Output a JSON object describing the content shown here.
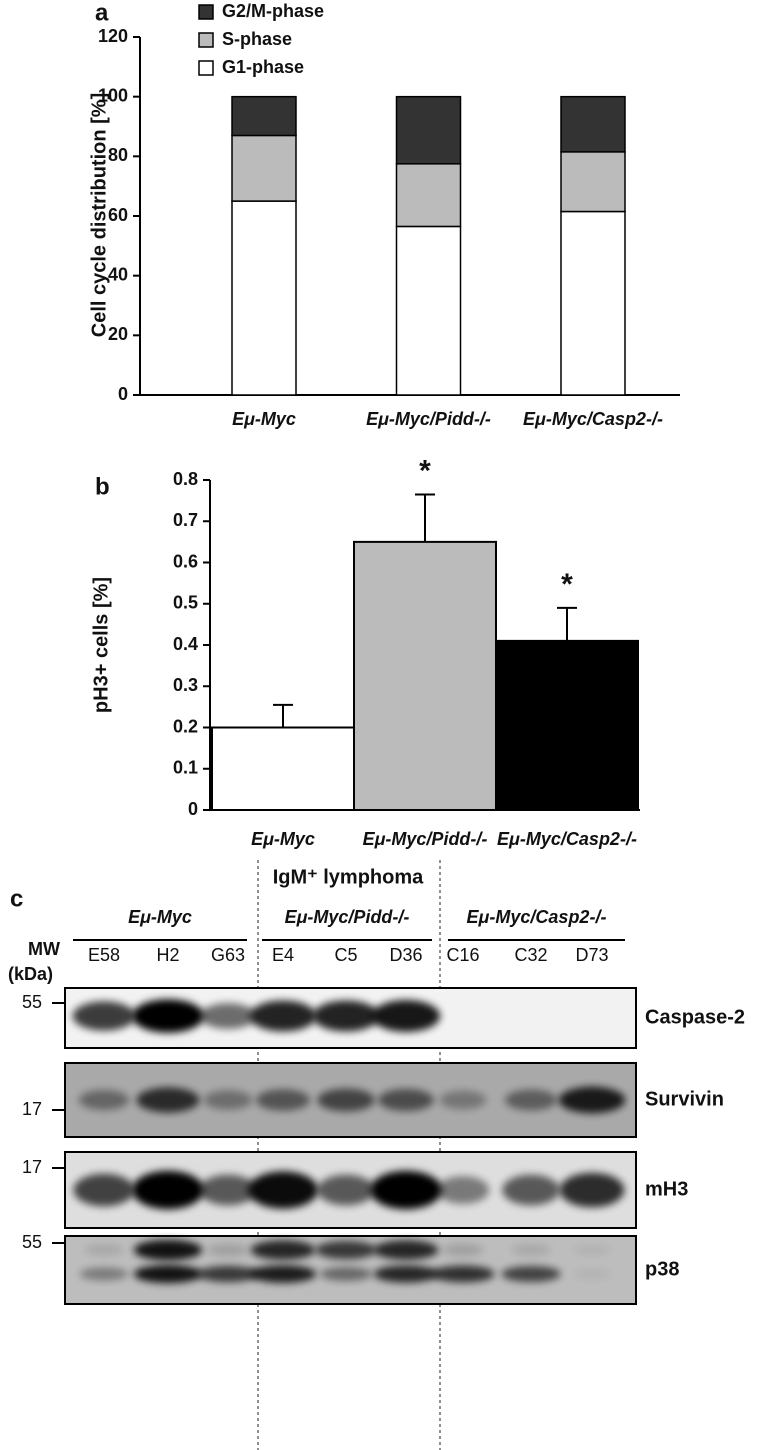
{
  "chart_data": [
    {
      "type": "stacked-bar",
      "panel_label": "a",
      "y_label": "Cell cycle distribution [%]",
      "categories": [
        "Eμ-Myc",
        "Eμ-Myc/Pidd-/-",
        "Eμ-Myc/Casp2-/-"
      ],
      "series": [
        {
          "name": "G1-phase",
          "color": "#ffffff",
          "values": [
            65,
            56.5,
            61.5
          ]
        },
        {
          "name": "S-phase",
          "color": "#bbbbbb",
          "values": [
            22,
            21,
            20
          ]
        },
        {
          "name": "G2/M-phase",
          "color": "#333333",
          "values": [
            13,
            22.5,
            18.5
          ]
        }
      ],
      "ylim": [
        0,
        120
      ],
      "yticks": [
        0,
        20,
        40,
        60,
        80,
        100,
        120
      ],
      "grid": false,
      "legend": "top-left"
    },
    {
      "type": "bar",
      "panel_label": "b",
      "y_label": "pH3+ cells [%]",
      "categories": [
        "Eμ-Myc",
        "Eμ-Myc/Pidd-/-",
        "Eμ-Myc/Casp2-/-"
      ],
      "values": [
        0.2,
        0.65,
        0.41
      ],
      "errors": [
        0.055,
        0.115,
        0.08
      ],
      "colors": [
        "#ffffff",
        "#bbbbbb",
        "#000000"
      ],
      "annotations": [
        {
          "category": "Eμ-Myc/Pidd-/-",
          "text": "*"
        },
        {
          "category": "Eμ-Myc/Casp2-/-",
          "text": "*"
        }
      ],
      "ylim": [
        0,
        0.8
      ],
      "yticks": [
        0,
        0.1,
        0.2,
        0.3,
        0.4,
        0.5,
        0.6,
        0.7,
        0.8
      ],
      "grid": false
    }
  ],
  "blot": {
    "panel_label": "c",
    "title": "IgM⁺ lymphoma",
    "groups": [
      "Eμ-Myc",
      "Eμ-Myc/Pidd-/-",
      "Eμ-Myc/Casp2-/-"
    ],
    "mw_label": [
      "MW",
      "(kDa)"
    ],
    "lanes": [
      "E58",
      "H2",
      "G63",
      "E4",
      "C5",
      "D36",
      "C16",
      "C32",
      "D73"
    ],
    "rows": [
      {
        "protein": "Caspase-2",
        "mw": 55
      },
      {
        "protein": "Survivin",
        "mw": 17
      },
      {
        "protein": "mH3",
        "mw": 17
      },
      {
        "protein": "p38",
        "mw": 55
      }
    ]
  }
}
